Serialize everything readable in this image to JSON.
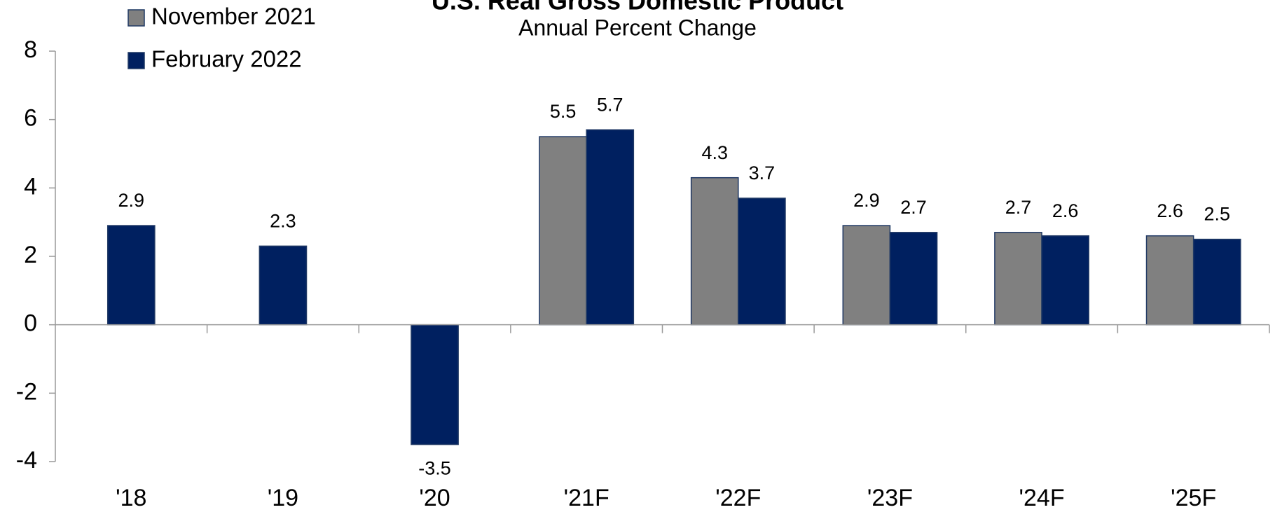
{
  "chart_data": {
    "type": "bar",
    "title": "U.S. Real Gross Domestic Product",
    "subtitle": "Annual Percent Change",
    "categories": [
      "'18",
      "'19",
      "'20",
      "'21F",
      "'22F",
      "'23F",
      "'24F",
      "'25F"
    ],
    "series": [
      {
        "name": "November 2021",
        "color": "#808080",
        "values": [
          null,
          null,
          null,
          5.5,
          4.3,
          2.9,
          2.7,
          2.6
        ]
      },
      {
        "name": "February 2022",
        "color": "#002060",
        "values": [
          2.9,
          2.3,
          -3.5,
          5.7,
          3.7,
          2.7,
          2.6,
          2.5
        ]
      }
    ],
    "ylim": [
      -4,
      8
    ],
    "yticks": [
      -4,
      -2,
      0,
      2,
      4,
      6,
      8
    ],
    "grid": false,
    "legend": "top-left"
  }
}
